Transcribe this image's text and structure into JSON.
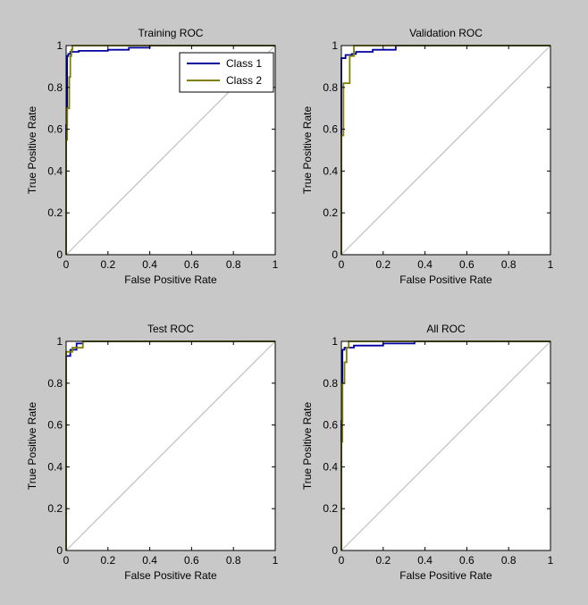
{
  "window": {
    "background": "#c8c8c8"
  },
  "chart_data": [
    {
      "type": "line",
      "title": "Training ROC",
      "xlabel": "False Positive Rate",
      "ylabel": "True Positive Rate",
      "xlim": [
        0,
        1
      ],
      "ylim": [
        0,
        1
      ],
      "xticks": [
        "0",
        "0.2",
        "0.4",
        "0.6",
        "0.8",
        "1"
      ],
      "yticks": [
        "0",
        "0.2",
        "0.4",
        "0.6",
        "0.8",
        "1"
      ],
      "grid": false,
      "legend": {
        "show": true,
        "placement": "top-right"
      },
      "diagonal": true,
      "series": [
        {
          "name": "Class 1",
          "color": "#0000a0",
          "points": [
            [
              0,
              0
            ],
            [
              0,
              0.62
            ],
            [
              0.005,
              0.62
            ],
            [
              0.005,
              0.95
            ],
            [
              0.01,
              0.95
            ],
            [
              0.01,
              0.96
            ],
            [
              0.02,
              0.96
            ],
            [
              0.02,
              0.97
            ],
            [
              0.06,
              0.97
            ],
            [
              0.06,
              0.975
            ],
            [
              0.2,
              0.975
            ],
            [
              0.2,
              0.98
            ],
            [
              0.3,
              0.98
            ],
            [
              0.3,
              0.99
            ],
            [
              0.4,
              0.99
            ],
            [
              0.4,
              1
            ],
            [
              1,
              1
            ]
          ]
        },
        {
          "name": "Class 2",
          "color": "#7f7f00",
          "points": [
            [
              0,
              0
            ],
            [
              0,
              0.55
            ],
            [
              0.005,
              0.55
            ],
            [
              0.005,
              0.7
            ],
            [
              0.015,
              0.7
            ],
            [
              0.015,
              0.85
            ],
            [
              0.02,
              0.85
            ],
            [
              0.02,
              0.95
            ],
            [
              0.025,
              0.95
            ],
            [
              0.025,
              0.98
            ],
            [
              0.03,
              0.98
            ],
            [
              0.03,
              1
            ],
            [
              1,
              1
            ]
          ]
        }
      ]
    },
    {
      "type": "line",
      "title": "Validation ROC",
      "xlabel": "False Positive Rate",
      "ylabel": "True Positive Rate",
      "xlim": [
        0,
        1
      ],
      "ylim": [
        0,
        1
      ],
      "xticks": [
        "0",
        "0.2",
        "0.4",
        "0.6",
        "0.8",
        "1"
      ],
      "yticks": [
        "0",
        "0.2",
        "0.4",
        "0.6",
        "0.8",
        "1"
      ],
      "grid": false,
      "legend": {
        "show": false
      },
      "diagonal": true,
      "series": [
        {
          "name": "Class 1",
          "color": "#0000a0",
          "points": [
            [
              0,
              0
            ],
            [
              0,
              0.94
            ],
            [
              0.02,
              0.94
            ],
            [
              0.02,
              0.955
            ],
            [
              0.05,
              0.955
            ],
            [
              0.05,
              0.96
            ],
            [
              0.07,
              0.96
            ],
            [
              0.07,
              0.97
            ],
            [
              0.15,
              0.97
            ],
            [
              0.15,
              0.98
            ],
            [
              0.26,
              0.98
            ],
            [
              0.26,
              1
            ],
            [
              1,
              1
            ]
          ]
        },
        {
          "name": "Class 2",
          "color": "#7f7f00",
          "points": [
            [
              0,
              0
            ],
            [
              0,
              0.57
            ],
            [
              0.01,
              0.57
            ],
            [
              0.01,
              0.82
            ],
            [
              0.04,
              0.82
            ],
            [
              0.04,
              0.95
            ],
            [
              0.06,
              0.95
            ],
            [
              0.06,
              1
            ],
            [
              1,
              1
            ]
          ]
        }
      ]
    },
    {
      "type": "line",
      "title": "Test ROC",
      "xlabel": "False Positive Rate",
      "ylabel": "True Positive Rate",
      "xlim": [
        0,
        1
      ],
      "ylim": [
        0,
        1
      ],
      "xticks": [
        "0",
        "0.2",
        "0.4",
        "0.6",
        "0.8",
        "1"
      ],
      "yticks": [
        "0",
        "0.2",
        "0.4",
        "0.6",
        "0.8",
        "1"
      ],
      "grid": false,
      "legend": {
        "show": false
      },
      "diagonal": true,
      "series": [
        {
          "name": "Class 1",
          "color": "#0000a0",
          "points": [
            [
              0,
              0
            ],
            [
              0,
              0.93
            ],
            [
              0.02,
              0.93
            ],
            [
              0.02,
              0.96
            ],
            [
              0.05,
              0.96
            ],
            [
              0.05,
              0.99
            ],
            [
              0.08,
              0.99
            ],
            [
              0.08,
              1
            ],
            [
              1,
              1
            ]
          ]
        },
        {
          "name": "Class 2",
          "color": "#7f7f00",
          "points": [
            [
              0,
              0
            ],
            [
              0,
              0.95
            ],
            [
              0.03,
              0.95
            ],
            [
              0.03,
              0.97
            ],
            [
              0.08,
              0.97
            ],
            [
              0.08,
              1
            ],
            [
              1,
              1
            ]
          ]
        }
      ]
    },
    {
      "type": "line",
      "title": "All ROC",
      "xlabel": "False Positive Rate",
      "ylabel": "True Positive Rate",
      "xlim": [
        0,
        1
      ],
      "ylim": [
        0,
        1
      ],
      "xticks": [
        "0",
        "0.2",
        "0.4",
        "0.6",
        "0.8",
        "1"
      ],
      "yticks": [
        "0",
        "0.2",
        "0.4",
        "0.6",
        "0.8",
        "1"
      ],
      "grid": false,
      "legend": {
        "show": false
      },
      "diagonal": true,
      "series": [
        {
          "name": "Class 1",
          "color": "#0000a0",
          "points": [
            [
              0,
              0
            ],
            [
              0,
              0.62
            ],
            [
              0.005,
              0.62
            ],
            [
              0.005,
              0.96
            ],
            [
              0.015,
              0.96
            ],
            [
              0.015,
              0.97
            ],
            [
              0.06,
              0.97
            ],
            [
              0.06,
              0.98
            ],
            [
              0.2,
              0.98
            ],
            [
              0.2,
              0.99
            ],
            [
              0.35,
              0.99
            ],
            [
              0.35,
              1
            ],
            [
              1,
              1
            ]
          ]
        },
        {
          "name": "Class 2",
          "color": "#7f7f00",
          "points": [
            [
              0,
              0
            ],
            [
              0,
              0.52
            ],
            [
              0.005,
              0.52
            ],
            [
              0.005,
              0.8
            ],
            [
              0.015,
              0.8
            ],
            [
              0.015,
              0.9
            ],
            [
              0.025,
              0.9
            ],
            [
              0.025,
              0.97
            ],
            [
              0.035,
              0.97
            ],
            [
              0.035,
              1
            ],
            [
              1,
              1
            ]
          ]
        }
      ]
    }
  ]
}
